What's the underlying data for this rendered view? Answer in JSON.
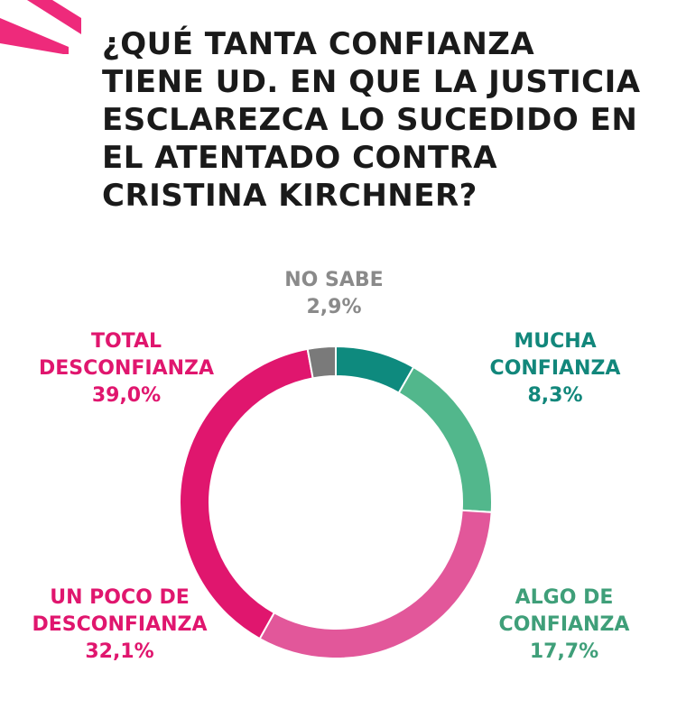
{
  "chart_data": {
    "type": "pie",
    "title": "¿QUÉ TANTA CONFIANZA TIENE UD. EN QUE LA JUSTICIA ESCLAREZCA LO SUCEDIDO EN EL ATENTADO CONTRA CRISTINA KIRCHNER?",
    "title_lines": [
      "¿QUÉ TANTA CONFIANZA",
      "TIENE UD. EN QUE LA JUSTICIA",
      "ESCLAREZCA LO SUCEDIDO EN",
      "EL ATENTADO CONTRA",
      "CRISTINA KIRCHNER?"
    ],
    "donut": true,
    "slices": [
      {
        "key": "mucha",
        "label_lines": [
          "MUCHA",
          "CONFIANZA"
        ],
        "value": 8.3,
        "value_label": "8,3%",
        "color": "#0e8a7e"
      },
      {
        "key": "algo",
        "label_lines": [
          "ALGO DE",
          "CONFIANZA"
        ],
        "value": 17.7,
        "value_label": "17,7%",
        "color": "#52b78c"
      },
      {
        "key": "poco",
        "label_lines": [
          "UN POCO DE",
          "DESCONFIANZA"
        ],
        "value": 32.1,
        "value_label": "32,1%",
        "color": "#e2579a"
      },
      {
        "key": "total",
        "label_lines": [
          "TOTAL",
          "DESCONFIANZA"
        ],
        "value": 39.0,
        "value_label": "39,0%",
        "color": "#e0166e"
      },
      {
        "key": "nosabe",
        "label_lines": [
          "NO SABE"
        ],
        "value": 2.9,
        "value_label": "2,9%",
        "color": "#7a7a7a"
      }
    ]
  },
  "colors": {
    "corner_accent": "#ee2a7b",
    "title_text": "#1a1a1a",
    "nosabe_label": "#8a8a8a",
    "mucha_label": "#12877b",
    "algo_label": "#3f9f79",
    "desconfianza_label": "#e0166e"
  }
}
